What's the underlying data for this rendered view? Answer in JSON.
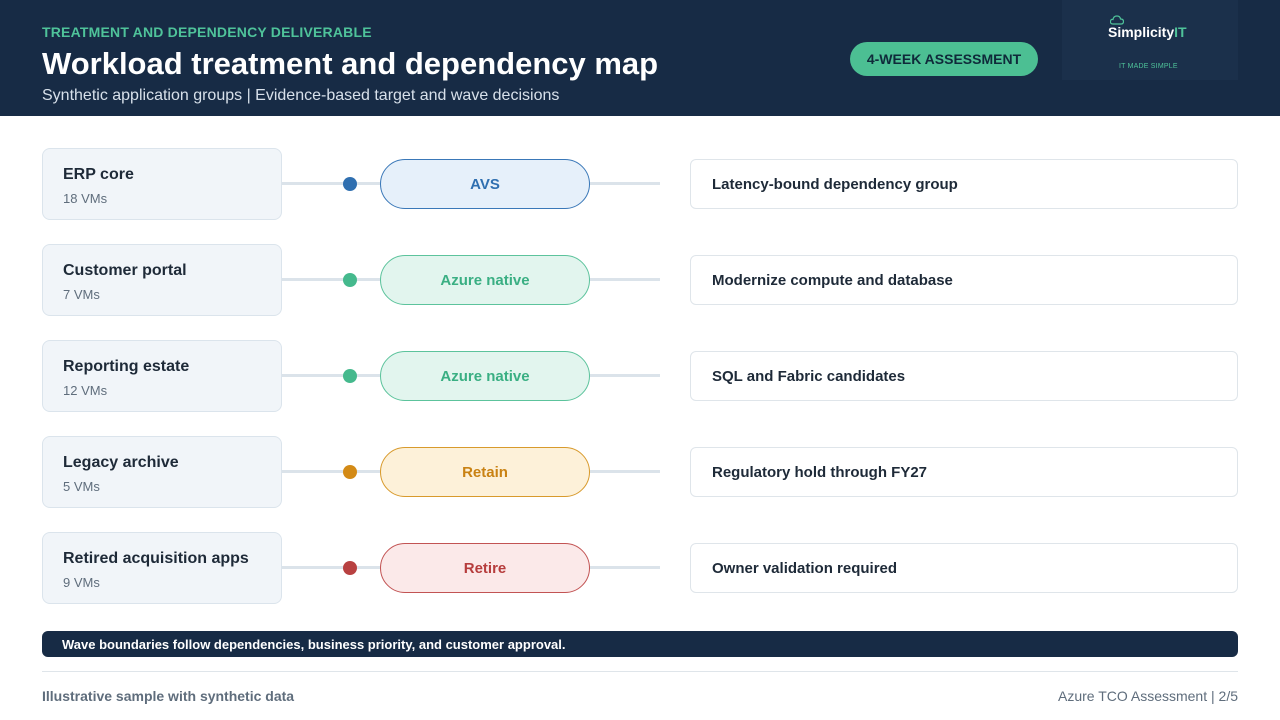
{
  "header": {
    "eyebrow": "TREATMENT AND DEPENDENCY DELIVERABLE",
    "title": "Workload treatment and dependency map",
    "subtitle": "Synthetic application groups | Evidence-based target and wave decisions",
    "badge": "4-WEEK ASSESSMENT",
    "logo": {
      "icon": "cloud-icon",
      "word_main": "Simplicity",
      "word_accent": "IT",
      "tagline": "IT MADE SIMPLE"
    }
  },
  "rows": [
    {
      "group": "ERP core",
      "count": "18 VMs",
      "treatment": "AVS",
      "note": "Latency-bound dependency group",
      "colors": {
        "dot": "#2f6fb0",
        "fill": "#e6f0fa",
        "border": "#3a78b8",
        "text": "#2f6fb0"
      }
    },
    {
      "group": "Customer portal",
      "count": "7 VMs",
      "treatment": "Azure native",
      "note": "Modernize compute and database",
      "colors": {
        "dot": "#45b98d",
        "fill": "#e2f5ee",
        "border": "#5cc39c",
        "text": "#3aaf83"
      }
    },
    {
      "group": "Reporting estate",
      "count": "12 VMs",
      "treatment": "Azure native",
      "note": "SQL and Fabric candidates",
      "colors": {
        "dot": "#45b98d",
        "fill": "#e2f5ee",
        "border": "#5cc39c",
        "text": "#3aaf83"
      }
    },
    {
      "group": "Legacy archive",
      "count": "5 VMs",
      "treatment": "Retain",
      "note": "Regulatory hold through FY27",
      "colors": {
        "dot": "#d38a16",
        "fill": "#fdf1d9",
        "border": "#d89a2c",
        "text": "#c98213"
      }
    },
    {
      "group": "Retired acquisition apps",
      "count": "9 VMs",
      "treatment": "Retire",
      "note": "Owner validation required",
      "colors": {
        "dot": "#b84141",
        "fill": "#fbe9e9",
        "border": "#c25353",
        "text": "#b63d3d"
      }
    }
  ],
  "banner": "Wave boundaries follow dependencies, business priority, and customer approval.",
  "footer": {
    "left": "Illustrative sample with synthetic data",
    "right": "Azure TCO Assessment | 2/5"
  }
}
